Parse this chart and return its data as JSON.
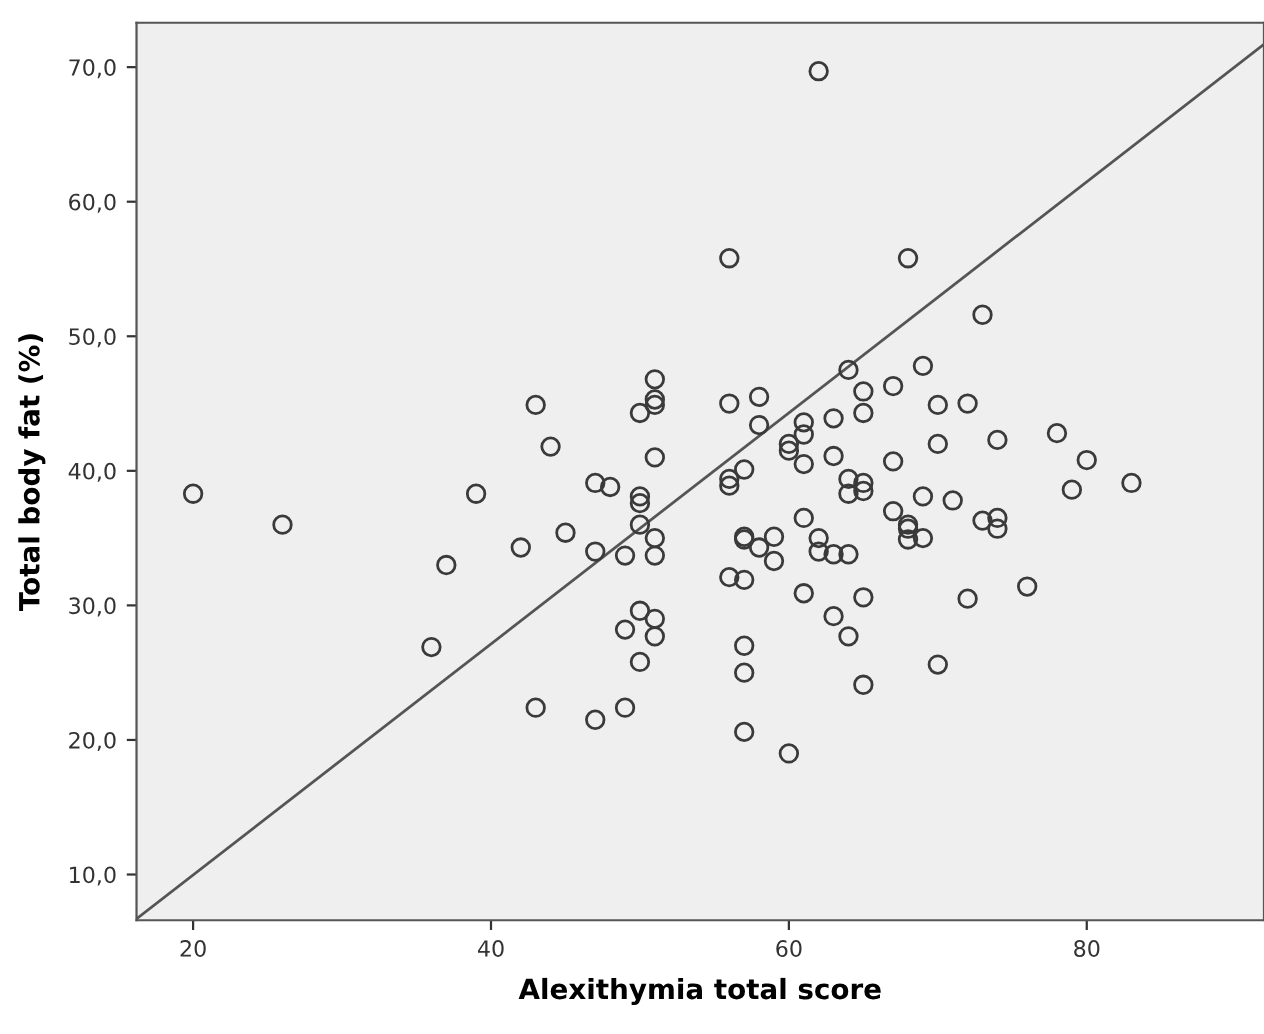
{
  "chart_data": {
    "type": "scatter",
    "xlabel": "Alexithymia total score",
    "ylabel": "Total body fat (%)",
    "xlim": [
      16.2,
      91.9
    ],
    "ylim": [
      6.6,
      73.3
    ],
    "xticks": [
      20,
      40,
      60,
      80
    ],
    "yticks": [
      {
        "value": 10,
        "label": "10,0"
      },
      {
        "value": 20,
        "label": "20,0"
      },
      {
        "value": 30,
        "label": "30,0"
      },
      {
        "value": 40,
        "label": "40,0"
      },
      {
        "value": 50,
        "label": "50,0"
      },
      {
        "value": 60,
        "label": "60,0"
      },
      {
        "value": 70,
        "label": "70,0"
      }
    ],
    "grid": false,
    "marker": "circle",
    "series": [
      {
        "color": "#3a3a3a",
        "x": [
          62,
          56,
          68,
          73,
          64,
          69,
          56,
          58,
          58,
          61,
          61,
          60,
          60,
          63,
          65,
          65,
          67,
          70,
          72,
          63,
          61,
          67,
          70,
          74,
          78,
          80,
          56,
          56,
          57,
          64,
          64,
          65,
          65,
          79,
          83,
          69,
          71,
          67,
          68,
          68,
          68,
          69,
          73,
          74,
          74,
          61,
          57,
          57,
          58,
          59,
          59,
          62,
          62,
          63,
          64,
          56,
          57,
          61,
          65,
          72,
          76,
          63,
          64,
          57,
          57,
          70,
          65,
          57,
          60,
          43,
          44,
          51,
          51,
          51,
          50,
          51,
          20,
          26,
          39,
          47,
          48,
          50,
          50,
          50,
          51,
          51,
          49,
          47,
          42,
          45,
          37,
          36,
          43,
          47,
          49,
          50,
          51,
          49,
          51,
          50
        ],
        "values": [
          69.7,
          55.8,
          55.8,
          51.6,
          47.5,
          47.8,
          45.0,
          45.5,
          43.4,
          43.6,
          42.7,
          42.0,
          41.5,
          43.9,
          45.9,
          44.3,
          46.3,
          44.9,
          45.0,
          41.1,
          40.5,
          40.7,
          42.0,
          42.3,
          42.8,
          40.8,
          39.4,
          38.9,
          40.1,
          39.4,
          38.3,
          39.1,
          38.5,
          38.6,
          39.1,
          38.1,
          37.8,
          37.0,
          36.0,
          35.7,
          34.9,
          35.0,
          36.3,
          36.5,
          35.7,
          36.5,
          35.1,
          34.9,
          34.3,
          35.1,
          33.3,
          35.0,
          34.0,
          33.8,
          33.8,
          32.1,
          31.9,
          30.9,
          30.6,
          30.5,
          31.4,
          29.2,
          27.7,
          27.0,
          25.0,
          25.6,
          24.1,
          20.6,
          19.0,
          44.9,
          41.8,
          46.8,
          45.3,
          44.9,
          44.3,
          41.0,
          38.3,
          36.0,
          38.3,
          39.1,
          38.8,
          38.1,
          37.6,
          36.0,
          35.0,
          33.7,
          33.7,
          34.0,
          34.3,
          35.4,
          33.0,
          26.9,
          22.4,
          21.5,
          22.4,
          29.6,
          29.0,
          28.2,
          27.7,
          25.8
        ]
      },
      {
        "type": "line",
        "color": "#555555",
        "x": [
          16.2,
          91.9
        ],
        "values": [
          6.7,
          71.7
        ],
        "marker": "none",
        "line_style": "solid"
      }
    ]
  }
}
